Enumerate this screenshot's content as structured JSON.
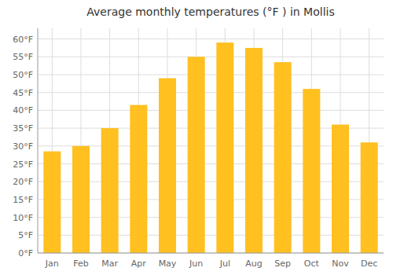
{
  "chart_data": {
    "type": "bar",
    "title": "Average monthly temperatures (°F ) in Mollis",
    "categories": [
      "Jan",
      "Feb",
      "Mar",
      "Apr",
      "May",
      "Jun",
      "Jul",
      "Aug",
      "Sep",
      "Oct",
      "Nov",
      "Dec"
    ],
    "values": [
      28.5,
      30.0,
      35.0,
      41.5,
      49.0,
      55.0,
      59.0,
      57.5,
      53.5,
      46.0,
      36.0,
      31.0
    ],
    "color": "#FFC020",
    "ylim": [
      0,
      63
    ],
    "yticks": [
      {
        "value": 0,
        "label": "0°F"
      },
      {
        "value": 5,
        "label": "5°F"
      },
      {
        "value": 10,
        "label": "10°F"
      },
      {
        "value": 15,
        "label": "15°F"
      },
      {
        "value": 20,
        "label": "20°F"
      },
      {
        "value": 25,
        "label": "25°F"
      },
      {
        "value": 30,
        "label": "30°F"
      },
      {
        "value": 35,
        "label": "35°F"
      },
      {
        "value": 40,
        "label": "40°F"
      },
      {
        "value": 45,
        "label": "45°F"
      },
      {
        "value": 50,
        "label": "50°F"
      },
      {
        "value": 55,
        "label": "55°F"
      },
      {
        "value": 60,
        "label": "60°F"
      }
    ],
    "grid": true
  }
}
